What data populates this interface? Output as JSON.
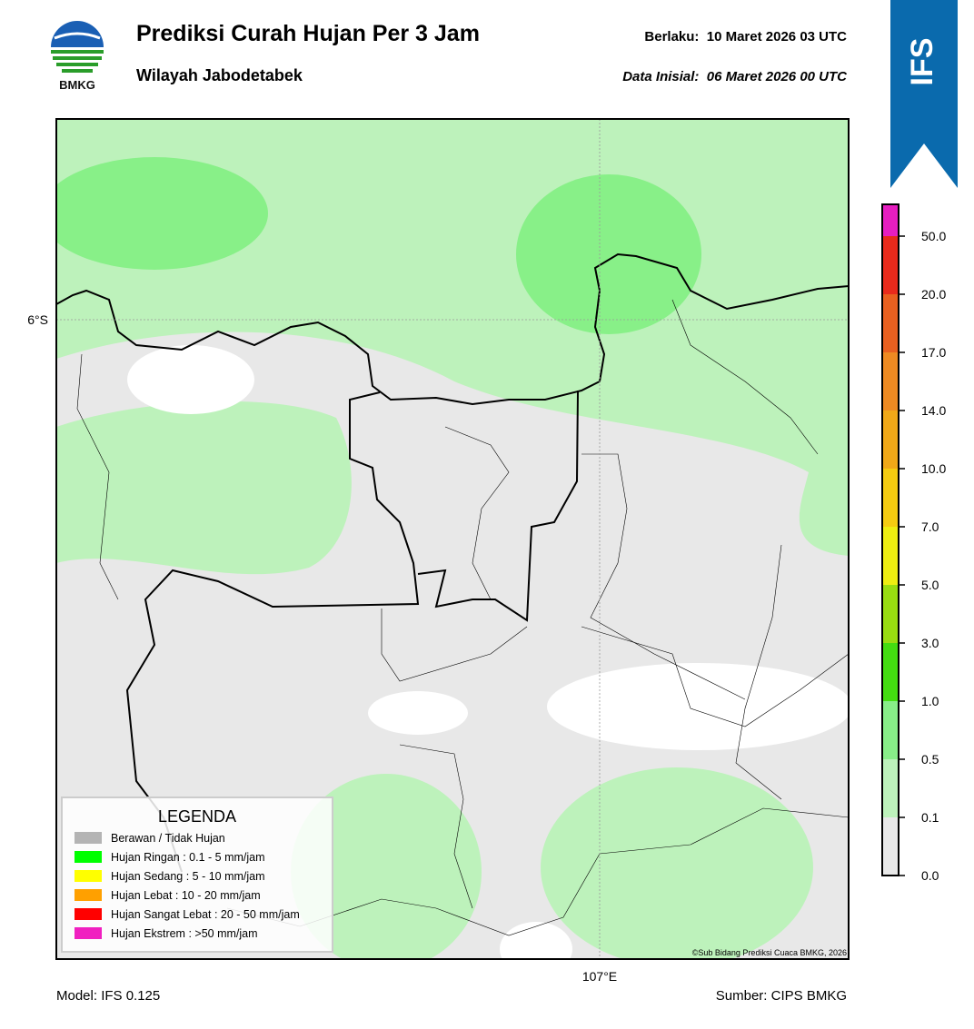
{
  "header": {
    "logo_text": "BMKG",
    "title": "Prediksi Curah Hujan Per 3 Jam",
    "subtitle": "Wilayah Jabodetabek",
    "valid": "Berlaku:  10 Maret 2026 03 UTC",
    "initial": "Data Inisial:  06 Maret 2026 00 UTC",
    "badge": "IFS"
  },
  "map": {
    "lat_label": "6°S",
    "lon_label": "107°E",
    "credit": "©Sub Bidang Prediksi Cuaca BMKG, 2026"
  },
  "legend": {
    "title": "LEGENDA",
    "items": [
      {
        "label": "Berawan / Tidak Hujan",
        "color": "#b4b4b4"
      },
      {
        "label": "Hujan Ringan : 0.1 - 5 mm/jam",
        "color": "#00ff00"
      },
      {
        "label": "Hujan Sedang : 5 - 10 mm/jam",
        "color": "#ffff00"
      },
      {
        "label": "Hujan Lebat : 10 - 20 mm/jam",
        "color": "#ffa000"
      },
      {
        "label": "Hujan Sangat Lebat : 20 - 50 mm/jam",
        "color": "#ff0000"
      },
      {
        "label": "Hujan Ekstrem : >50 mm/jam",
        "color": "#f020c0"
      }
    ]
  },
  "colorbar": {
    "labels": [
      "0.0",
      "0.1",
      "0.5",
      "1.0",
      "3.0",
      "5.0",
      "7.0",
      "10.0",
      "14.0",
      "17.0",
      "20.0",
      "50.0"
    ],
    "colors": [
      "#e8e8e8",
      "#bdf2bb",
      "#88ee88",
      "#44dd11",
      "#99dd11",
      "#eeee11",
      "#f5cc11",
      "#f0a818",
      "#ee8a22",
      "#e86020",
      "#e82a1c",
      "#e61ec0"
    ]
  },
  "footer": {
    "model": "Model: IFS 0.125",
    "source": "Sumber: CIPS BMKG"
  }
}
